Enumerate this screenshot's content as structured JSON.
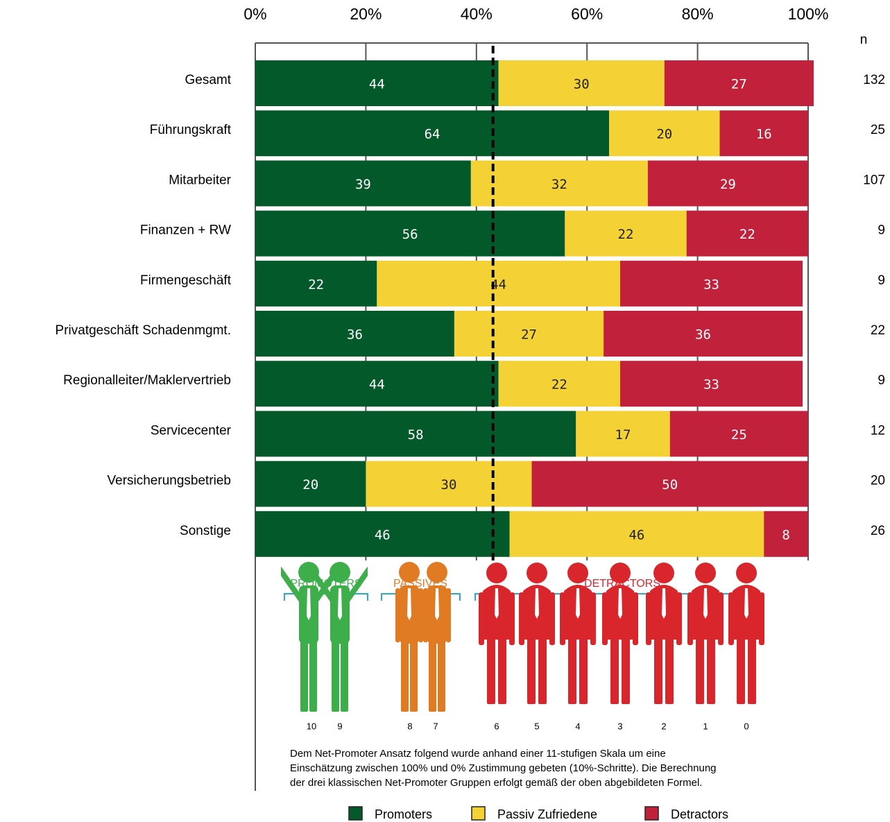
{
  "chart_data": {
    "type": "bar",
    "orientation": "horizontal",
    "stacked": true,
    "categories": [
      "Gesamt",
      "Führungskraft",
      "Mitarbeiter",
      "Finanzen + RW",
      "Firmengeschäft",
      "Privatgeschäft Schadenmgmt.",
      "Regionalleiter/Maklervertrieb",
      "Servicecenter",
      "Versicherungsbetrieb",
      "Sonstige"
    ],
    "series": [
      {
        "name": "Promoters",
        "color": "#04592a",
        "label_color": "#ffffff",
        "values": [
          44,
          64,
          39,
          56,
          22,
          36,
          44,
          58,
          20,
          46
        ]
      },
      {
        "name": "Passiv Zufriedene",
        "color": "#f4d135",
        "label_color": "#222222",
        "values": [
          30,
          20,
          32,
          22,
          44,
          27,
          22,
          17,
          30,
          46
        ]
      },
      {
        "name": "Detractors",
        "color": "#c1213a",
        "label_color": "#ffffff",
        "values": [
          27,
          16,
          29,
          22,
          33,
          36,
          33,
          25,
          50,
          8
        ]
      }
    ],
    "n_label": "n",
    "n": [
      132,
      25,
      107,
      9,
      9,
      22,
      9,
      12,
      20,
      26
    ],
    "xlim": [
      0,
      100
    ],
    "xticks": [
      {
        "value": 0,
        "label": "0%"
      },
      {
        "value": 20,
        "label": "20%"
      },
      {
        "value": 40,
        "label": "40%"
      },
      {
        "value": 60,
        "label": "60%"
      },
      {
        "value": 80,
        "label": "80%"
      },
      {
        "value": 100,
        "label": "100%"
      }
    ],
    "reference_line": 43,
    "grid": true
  },
  "infographic": {
    "groups": [
      "PROMOTERS",
      "PASSIVES",
      "DETRACTORS"
    ],
    "scale": [
      10,
      9,
      8,
      7,
      6,
      5,
      4,
      3,
      2,
      1,
      0
    ],
    "footnote": [
      "Dem Net-Promoter Ansatz folgend wurde anhand einer 11-stufigen Skala um eine",
      "Einschätzung zwischen 100% und 0% Zustimmung gebeten (10%-Schritte). Die Berechnung",
      "der drei klassischen Net-Promoter Gruppen erfolgt gemäß der oben abgebildeten Formel."
    ]
  }
}
